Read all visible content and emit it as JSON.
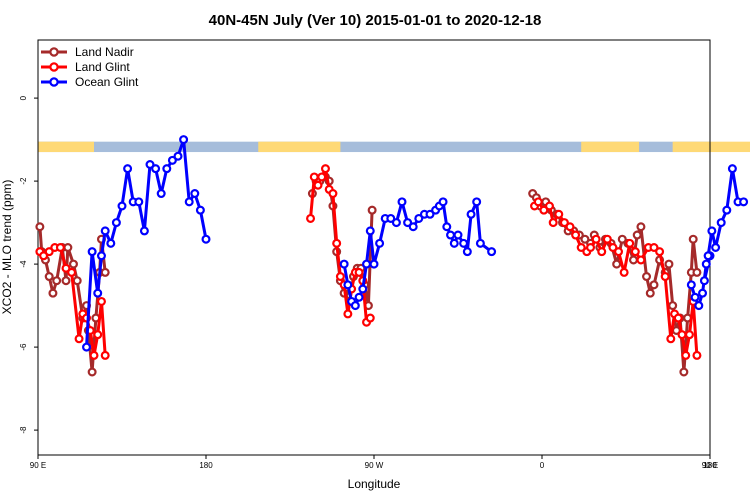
{
  "chart_data": {
    "type": "line",
    "title": "40N-45N July (Ver 10)   2015-01-01 to 2020-12-18",
    "xlabel": "Longitude",
    "ylabel": "XCO2 - MLO trend (ppm)",
    "xlim": [
      90,
      450
    ],
    "ylim": [
      -8.6,
      1.4
    ],
    "x_ticks": [
      {
        "value": 90,
        "label": "90 E"
      },
      {
        "value": 180,
        "label": "180"
      },
      {
        "value": 270,
        "label": "90 W"
      },
      {
        "value": 360,
        "label": "0"
      },
      {
        "value": 450,
        "label": "90 E"
      },
      {
        "value": 540,
        "label": "180"
      }
    ],
    "y_ticks": [
      {
        "value": 0,
        "label": "0"
      },
      {
        "value": -2,
        "label": "-2"
      },
      {
        "value": -4,
        "label": "-4"
      },
      {
        "value": -6,
        "label": "-6"
      },
      {
        "value": -8,
        "label": "-8"
      }
    ],
    "grid": false,
    "legend": {
      "position": "top-left"
    },
    "land_ocean_band": {
      "y_range": [
        -1.05,
        -1.3
      ],
      "ocean_color": "#a6bddb",
      "land_color": "#fed976",
      "land_segments": [
        [
          90,
          120
        ],
        [
          208,
          252
        ],
        [
          381,
          412
        ],
        [
          430,
          482
        ],
        [
          487,
          492
        ]
      ]
    },
    "series": [
      {
        "name": "Land Nadir",
        "color": "#a52a2a",
        "points": [
          [
            91,
            -3.1
          ],
          [
            92,
            -3.7
          ],
          [
            94,
            -3.9
          ],
          [
            96,
            -4.3
          ],
          [
            98,
            -4.7
          ],
          [
            100,
            -4.4
          ],
          [
            103,
            -3.6
          ],
          [
            105,
            -4.4
          ],
          [
            106,
            -3.6
          ],
          [
            109,
            -4.0
          ],
          [
            111,
            -4.4
          ],
          [
            114,
            -5.3
          ],
          [
            116,
            -5.0
          ],
          [
            117,
            -5.6
          ],
          [
            119,
            -6.6
          ],
          [
            121,
            -5.3
          ],
          [
            123,
            -4.2
          ],
          [
            124,
            -3.4
          ],
          [
            126,
            -4.2
          ],
          [
            237,
            -2.3
          ],
          [
            239,
            -2.0
          ],
          [
            241,
            -2.0
          ],
          [
            244,
            -1.9
          ],
          [
            246,
            -2.0
          ],
          [
            248,
            -2.6
          ],
          [
            250,
            -3.7
          ],
          [
            252,
            -4.4
          ],
          [
            254,
            -4.7
          ],
          [
            257,
            -4.9
          ],
          [
            259,
            -4.3
          ],
          [
            261,
            -4.1
          ],
          [
            263,
            -4.1
          ],
          [
            265,
            -4.5
          ],
          [
            267,
            -5.0
          ],
          [
            269,
            -2.7
          ],
          [
            355,
            -2.3
          ],
          [
            357,
            -2.4
          ],
          [
            359,
            -2.6
          ],
          [
            362,
            -2.5
          ],
          [
            365,
            -2.7
          ],
          [
            368,
            -2.8
          ],
          [
            371,
            -3.0
          ],
          [
            374,
            -3.2
          ],
          [
            377,
            -3.2
          ],
          [
            380,
            -3.3
          ],
          [
            383,
            -3.4
          ],
          [
            386,
            -3.5
          ],
          [
            388,
            -3.3
          ],
          [
            391,
            -3.6
          ],
          [
            394,
            -3.4
          ],
          [
            397,
            -3.5
          ],
          [
            400,
            -4.0
          ],
          [
            403,
            -3.4
          ],
          [
            406,
            -3.5
          ],
          [
            409,
            -3.9
          ],
          [
            411,
            -3.3
          ],
          [
            413,
            -3.1
          ],
          [
            416,
            -4.3
          ],
          [
            418,
            -4.7
          ],
          [
            420,
            -4.5
          ],
          [
            423,
            -3.9
          ],
          [
            426,
            -4.2
          ],
          [
            428,
            -4.0
          ],
          [
            430,
            -5.0
          ],
          [
            432,
            -5.6
          ],
          [
            434,
            -5.3
          ],
          [
            436,
            -6.6
          ],
          [
            438,
            -5.3
          ],
          [
            440,
            -4.2
          ],
          [
            441,
            -3.4
          ],
          [
            443,
            -4.2
          ]
        ]
      },
      {
        "name": "Land Glint",
        "color": "#ff0000",
        "points": [
          [
            91,
            -3.7
          ],
          [
            93,
            -3.8
          ],
          [
            96,
            -3.7
          ],
          [
            99,
            -3.6
          ],
          [
            102,
            -3.6
          ],
          [
            105,
            -4.1
          ],
          [
            108,
            -4.2
          ],
          [
            112,
            -5.8
          ],
          [
            114,
            -5.2
          ],
          [
            116,
            -5.3
          ],
          [
            118,
            -5.6
          ],
          [
            120,
            -6.2
          ],
          [
            122,
            -5.7
          ],
          [
            124,
            -4.9
          ],
          [
            126,
            -6.2
          ],
          [
            236,
            -2.9
          ],
          [
            238,
            -1.9
          ],
          [
            240,
            -2.1
          ],
          [
            242,
            -1.9
          ],
          [
            244,
            -1.7
          ],
          [
            246,
            -2.2
          ],
          [
            248,
            -2.3
          ],
          [
            250,
            -3.5
          ],
          [
            252,
            -4.3
          ],
          [
            254,
            -4.5
          ],
          [
            256,
            -5.2
          ],
          [
            258,
            -4.6
          ],
          [
            260,
            -4.2
          ],
          [
            262,
            -4.2
          ],
          [
            264,
            -4.4
          ],
          [
            266,
            -5.4
          ],
          [
            268,
            -5.3
          ],
          [
            356,
            -2.6
          ],
          [
            358,
            -2.5
          ],
          [
            361,
            -2.7
          ],
          [
            364,
            -2.6
          ],
          [
            366,
            -3.0
          ],
          [
            369,
            -2.8
          ],
          [
            372,
            -3.0
          ],
          [
            375,
            -3.1
          ],
          [
            378,
            -3.3
          ],
          [
            381,
            -3.6
          ],
          [
            384,
            -3.7
          ],
          [
            386,
            -3.6
          ],
          [
            389,
            -3.4
          ],
          [
            392,
            -3.7
          ],
          [
            395,
            -3.4
          ],
          [
            398,
            -3.6
          ],
          [
            401,
            -3.7
          ],
          [
            404,
            -4.2
          ],
          [
            407,
            -3.5
          ],
          [
            410,
            -3.7
          ],
          [
            413,
            -3.9
          ],
          [
            417,
            -3.6
          ],
          [
            420,
            -3.6
          ],
          [
            423,
            -3.7
          ],
          [
            426,
            -4.3
          ],
          [
            429,
            -5.8
          ],
          [
            431,
            -5.2
          ],
          [
            433,
            -5.3
          ],
          [
            435,
            -5.7
          ],
          [
            437,
            -6.2
          ],
          [
            439,
            -5.7
          ],
          [
            441,
            -4.9
          ],
          [
            443,
            -6.2
          ]
        ]
      },
      {
        "name": "Ocean Glint",
        "color": "#0000ff",
        "points": [
          [
            116,
            -6.0
          ],
          [
            119,
            -3.7
          ],
          [
            122,
            -4.7
          ],
          [
            124,
            -3.8
          ],
          [
            126,
            -3.2
          ],
          [
            129,
            -3.5
          ],
          [
            132,
            -3.0
          ],
          [
            135,
            -2.6
          ],
          [
            138,
            -1.7
          ],
          [
            141,
            -2.5
          ],
          [
            144,
            -2.5
          ],
          [
            147,
            -3.2
          ],
          [
            150,
            -1.6
          ],
          [
            153,
            -1.7
          ],
          [
            156,
            -2.3
          ],
          [
            159,
            -1.7
          ],
          [
            162,
            -1.5
          ],
          [
            165,
            -1.4
          ],
          [
            168,
            -1.0
          ],
          [
            171,
            -2.5
          ],
          [
            174,
            -2.3
          ],
          [
            177,
            -2.7
          ],
          [
            180,
            -3.4
          ],
          [
            254,
            -4.0
          ],
          [
            256,
            -4.5
          ],
          [
            258,
            -4.9
          ],
          [
            260,
            -5.0
          ],
          [
            262,
            -4.8
          ],
          [
            264,
            -4.6
          ],
          [
            266,
            -4.0
          ],
          [
            268,
            -3.2
          ],
          [
            270,
            -4.0
          ],
          [
            273,
            -3.5
          ],
          [
            276,
            -2.9
          ],
          [
            279,
            -2.9
          ],
          [
            282,
            -3.0
          ],
          [
            285,
            -2.5
          ],
          [
            288,
            -3.0
          ],
          [
            291,
            -3.1
          ],
          [
            294,
            -2.9
          ],
          [
            297,
            -2.8
          ],
          [
            300,
            -2.8
          ],
          [
            303,
            -2.7
          ],
          [
            305,
            -2.6
          ],
          [
            307,
            -2.5
          ],
          [
            309,
            -3.1
          ],
          [
            311,
            -3.3
          ],
          [
            313,
            -3.5
          ],
          [
            315,
            -3.3
          ],
          [
            318,
            -3.5
          ],
          [
            320,
            -3.7
          ],
          [
            322,
            -2.8
          ],
          [
            325,
            -2.5
          ],
          [
            327,
            -3.5
          ],
          [
            333,
            -3.7
          ],
          [
            440,
            -4.5
          ],
          [
            442,
            -4.8
          ],
          [
            444,
            -5.0
          ],
          [
            446,
            -4.7
          ],
          [
            448,
            -4.0
          ],
          [
            450,
            -3.8
          ],
          [
            447,
            -4.4
          ],
          [
            449,
            -3.8
          ],
          [
            451,
            -3.2
          ],
          [
            453,
            -3.6
          ],
          [
            456,
            -3.0
          ],
          [
            459,
            -2.7
          ],
          [
            462,
            -1.7
          ],
          [
            465,
            -2.5
          ],
          [
            468,
            -2.5
          ]
        ]
      }
    ]
  }
}
